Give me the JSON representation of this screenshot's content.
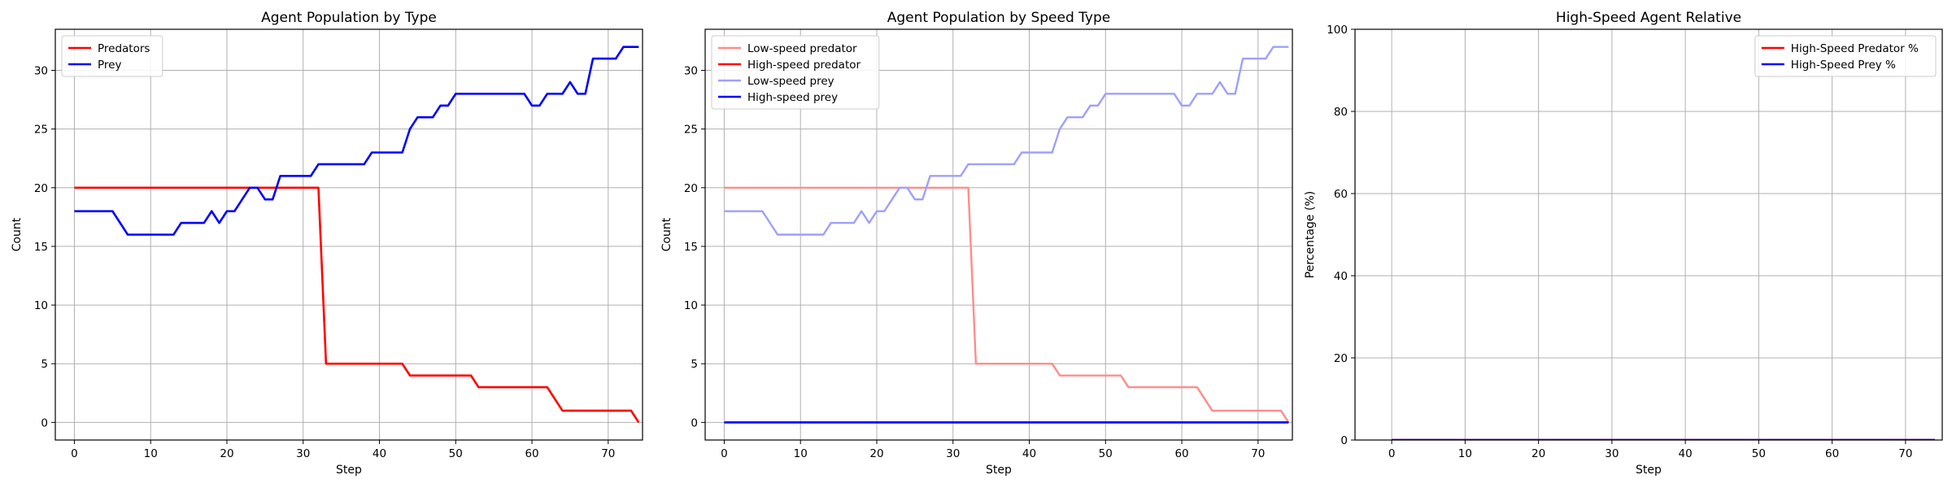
{
  "charts": [
    {
      "type": "line",
      "title": "Agent Population by Type",
      "xlabel": "Step",
      "ylabel": "Count",
      "xlim": [
        -2.5,
        74.5
      ],
      "ylim": [
        -1.5,
        33.5
      ],
      "xticks": [
        0,
        10,
        20,
        30,
        40,
        50,
        60,
        70
      ],
      "yticks": [
        0,
        5,
        10,
        15,
        20,
        25,
        30
      ],
      "grid": true,
      "legend_loc": "upper-left",
      "series": [
        {
          "name": "Predators",
          "color": "#ff0000",
          "width": 2.6,
          "x": [
            0,
            32,
            33,
            43,
            44,
            52,
            53,
            62,
            64,
            73,
            74
          ],
          "y": [
            20,
            20,
            5,
            5,
            4,
            4,
            3,
            3,
            1,
            1,
            0
          ]
        },
        {
          "name": "Prey",
          "color": "#0000ff",
          "width": 2.6,
          "x": [
            0,
            5,
            7,
            13,
            14,
            17,
            18,
            19,
            20,
            21,
            22,
            23,
            24,
            25,
            26,
            27,
            31,
            32,
            38,
            39,
            43,
            44,
            45,
            47,
            48,
            49,
            50,
            59,
            60,
            61,
            62,
            64,
            65,
            66,
            67,
            68,
            71,
            72,
            74
          ],
          "y": [
            18,
            18,
            16,
            16,
            17,
            17,
            18,
            17,
            18,
            18,
            19,
            20,
            20,
            19,
            19,
            21,
            21,
            22,
            22,
            23,
            23,
            25,
            26,
            26,
            27,
            27,
            28,
            28,
            27,
            27,
            28,
            28,
            29,
            28,
            28,
            31,
            31,
            32,
            32
          ]
        }
      ]
    },
    {
      "type": "line",
      "title": "Agent Population by Speed Type",
      "xlabel": "Step",
      "ylabel": "Count",
      "xlim": [
        -2.5,
        74.5
      ],
      "ylim": [
        -1.5,
        33.5
      ],
      "xticks": [
        0,
        10,
        20,
        30,
        40,
        50,
        60,
        70
      ],
      "yticks": [
        0,
        5,
        10,
        15,
        20,
        25,
        30
      ],
      "grid": true,
      "legend_loc": "upper-left",
      "series": [
        {
          "name": "Low-speed predator",
          "color": "#ff8c8c",
          "width": 2.4,
          "x": [
            0,
            32,
            33,
            43,
            44,
            52,
            53,
            62,
            64,
            73,
            74
          ],
          "y": [
            20,
            20,
            5,
            5,
            4,
            4,
            3,
            3,
            1,
            1,
            0
          ]
        },
        {
          "name": "High-speed predator",
          "color": "#ff0000",
          "width": 2.6,
          "x": [
            0,
            74
          ],
          "y": [
            0,
            0
          ]
        },
        {
          "name": "Low-speed prey",
          "color": "#9f9fff",
          "width": 2.4,
          "x": [
            0,
            5,
            7,
            13,
            14,
            17,
            18,
            19,
            20,
            21,
            22,
            23,
            24,
            25,
            26,
            27,
            31,
            32,
            38,
            39,
            43,
            44,
            45,
            47,
            48,
            49,
            50,
            59,
            60,
            61,
            62,
            64,
            65,
            66,
            67,
            68,
            71,
            72,
            74
          ],
          "y": [
            18,
            18,
            16,
            16,
            17,
            17,
            18,
            17,
            18,
            18,
            19,
            20,
            20,
            19,
            19,
            21,
            21,
            22,
            22,
            23,
            23,
            25,
            26,
            26,
            27,
            27,
            28,
            28,
            27,
            27,
            28,
            28,
            29,
            28,
            28,
            31,
            31,
            32,
            32
          ]
        },
        {
          "name": "High-speed prey",
          "color": "#0000ff",
          "width": 2.6,
          "x": [
            0,
            74
          ],
          "y": [
            0,
            0
          ]
        }
      ]
    },
    {
      "type": "line",
      "title": "High-Speed Agent Relative",
      "xlabel": "Step",
      "ylabel": "Percentage (%)",
      "xlim": [
        -5,
        75
      ],
      "ylim": [
        0,
        100
      ],
      "xticks": [
        0,
        10,
        20,
        30,
        40,
        50,
        60,
        70
      ],
      "yticks": [
        0,
        20,
        40,
        60,
        80,
        100
      ],
      "grid": true,
      "legend_loc": "upper-right",
      "series": [
        {
          "name": "High-Speed Predator %",
          "color": "#ff0000",
          "width": 2.6,
          "x": [
            0,
            74
          ],
          "y": [
            0,
            0
          ]
        },
        {
          "name": "High-Speed Prey %",
          "color": "#0000ff",
          "width": 2.6,
          "x": [
            0,
            74
          ],
          "y": [
            0,
            0
          ]
        }
      ]
    }
  ]
}
